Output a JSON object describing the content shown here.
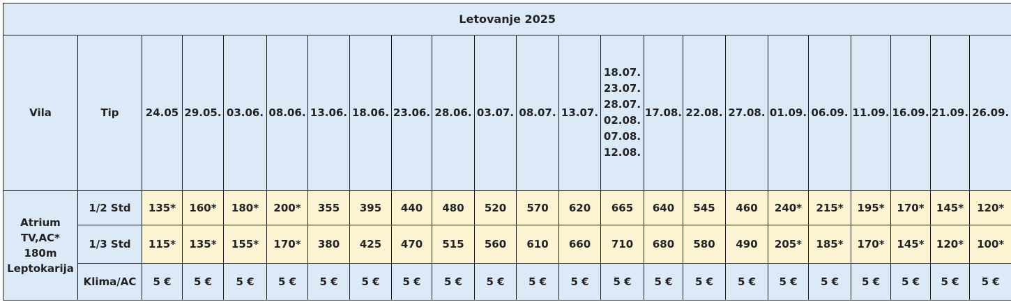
{
  "title": "Letovanje 2025",
  "headers": {
    "villa": "Vila",
    "type": "Tip",
    "dates": [
      "24.05",
      "29.05.",
      "03.06.",
      "08.06.",
      "13.06.",
      "18.06.",
      "23.06.",
      "28.06.",
      "03.07.",
      "08.07.",
      "13.07.",
      [
        "18.07.",
        "23.07.",
        "28.07.",
        "02.08.",
        "07.08.",
        "12.08."
      ],
      "17.08.",
      "22.08.",
      "27.08.",
      "01.09.",
      "06.09.",
      "11.09.",
      "16.09.",
      "21.09.",
      "26.09."
    ]
  },
  "villa": {
    "lines": [
      "Atrium",
      "TV,AC*",
      "180m",
      "Leptokarija"
    ]
  },
  "rows": [
    {
      "type": "1/2 Std",
      "values": [
        "135*",
        "160*",
        "180*",
        "200*",
        "355",
        "395",
        "440",
        "480",
        "520",
        "570",
        "620",
        "665",
        "640",
        "545",
        "460",
        "240*",
        "215*",
        "195*",
        "170*",
        "145*",
        "120*"
      ]
    },
    {
      "type": "1/3 Std",
      "values": [
        "115*",
        "135*",
        "155*",
        "170*",
        "380",
        "425",
        "470",
        "515",
        "560",
        "610",
        "660",
        "710",
        "680",
        "580",
        "490",
        "205*",
        "185*",
        "170*",
        "145*",
        "120*",
        "100*"
      ]
    },
    {
      "type": "Klima/AC",
      "values": [
        "5 €",
        "5 €",
        "5 €",
        "5 €",
        "5 €",
        "5 €",
        "5 €",
        "5 €",
        "5 €",
        "5 €",
        "5 €",
        "5 €",
        "5 €",
        "5 €",
        "5 €",
        "5 €",
        "5 €",
        "5 €",
        "5 €",
        "5 €",
        "5 €"
      ]
    }
  ],
  "colors": {
    "header_bg": "#dce9f7",
    "price_bg": "#fcf3d3",
    "border": "#1a1a1a"
  }
}
